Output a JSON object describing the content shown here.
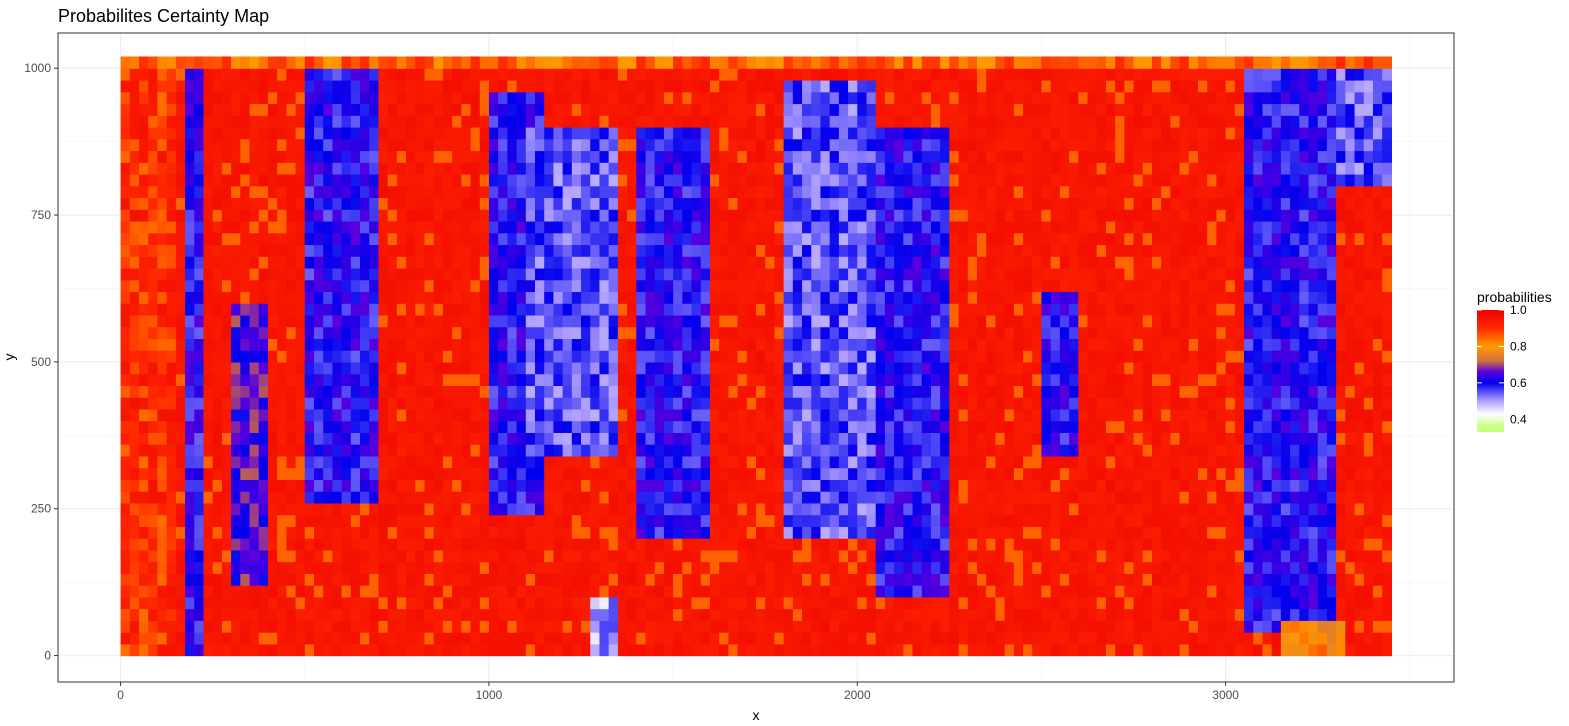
{
  "chart_data": {
    "type": "heatmap",
    "title": "Probabilites Certainty Map",
    "xlabel": "x",
    "ylabel": "y",
    "xlim": [
      -170,
      3620
    ],
    "ylim": [
      -45,
      1060
    ],
    "data_extent": {
      "x": [
        0,
        3450
      ],
      "y": [
        0,
        1020
      ]
    },
    "x_ticks": [
      0,
      1000,
      2000,
      3000
    ],
    "y_ticks": [
      0,
      250,
      500,
      750,
      1000
    ],
    "grid": true,
    "legend": {
      "title": "probabilities",
      "placement": "right",
      "ticks": [
        1.0,
        0.8,
        0.6,
        0.4
      ],
      "tick_labels": [
        "1.0",
        "0.8",
        "0.6",
        "0.4"
      ],
      "range": [
        0.33,
        1.0
      ],
      "colors": [
        {
          "value": 1.0,
          "color": "#ee0000"
        },
        {
          "value": 0.9,
          "color": "#ff2a00"
        },
        {
          "value": 0.8,
          "color": "#ff9a00"
        },
        {
          "value": 0.72,
          "color": "#d07040"
        },
        {
          "value": 0.66,
          "color": "#5a00dd"
        },
        {
          "value": 0.6,
          "color": "#0000ee"
        },
        {
          "value": 0.5,
          "color": "#b0a0ff"
        },
        {
          "value": 0.43,
          "color": "#ffffff"
        },
        {
          "value": 0.36,
          "color": "#c8ff80"
        }
      ]
    },
    "background_value": 0.97,
    "regions": [
      {
        "x": [
          0,
          160
        ],
        "y": [
          0,
          1020
        ],
        "value": 0.9
      },
      {
        "x": [
          170,
          230
        ],
        "y": [
          0,
          1020
        ],
        "value": 0.6
      },
      {
        "x": [
          300,
          400
        ],
        "y": [
          120,
          600
        ],
        "value": 0.65
      },
      {
        "x": [
          500,
          700
        ],
        "y": [
          270,
          1000
        ],
        "value": 0.6
      },
      {
        "x": [
          1000,
          1150
        ],
        "y": [
          250,
          950
        ],
        "value": 0.6
      },
      {
        "x": [
          1100,
          1350
        ],
        "y": [
          350,
          900
        ],
        "value": 0.55
      },
      {
        "x": [
          1280,
          1350
        ],
        "y": [
          0,
          100
        ],
        "value": 0.5
      },
      {
        "x": [
          1400,
          1600
        ],
        "y": [
          200,
          900
        ],
        "value": 0.6
      },
      {
        "x": [
          1800,
          2050
        ],
        "y": [
          200,
          980
        ],
        "value": 0.55
      },
      {
        "x": [
          2050,
          2250
        ],
        "y": [
          100,
          900
        ],
        "value": 0.6
      },
      {
        "x": [
          2500,
          2600
        ],
        "y": [
          350,
          620
        ],
        "value": 0.6
      },
      {
        "x": [
          3050,
          3300
        ],
        "y": [
          50,
          1000
        ],
        "value": 0.6
      },
      {
        "x": [
          3300,
          3450
        ],
        "y": [
          800,
          1020
        ],
        "value": 0.55
      },
      {
        "x": [
          3150,
          3330
        ],
        "y": [
          0,
          60
        ],
        "value": 0.8
      },
      {
        "x": [
          0,
          3450
        ],
        "y": [
          1000,
          1020
        ],
        "value": 0.85
      }
    ]
  }
}
